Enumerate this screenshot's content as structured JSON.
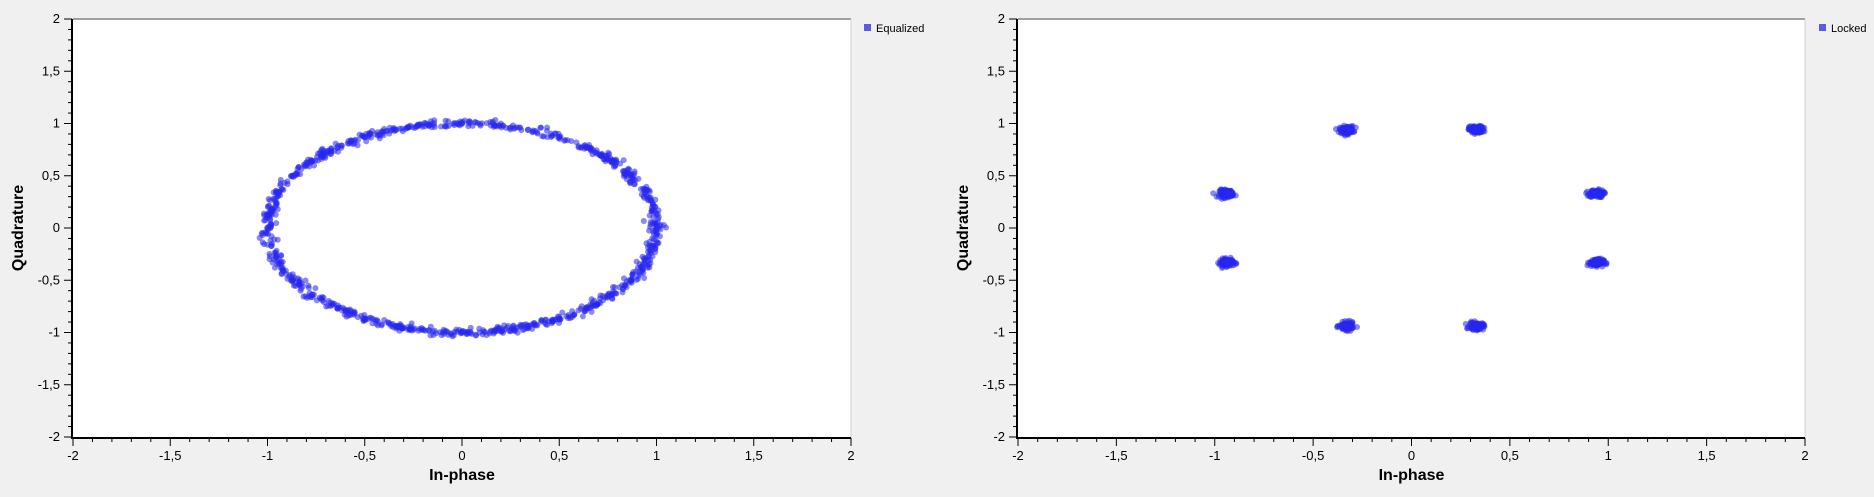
{
  "chart_data": [
    {
      "type": "scatter",
      "xlabel": "In-phase",
      "ylabel": "Quadrature",
      "xlim": [
        -2,
        2
      ],
      "ylim": [
        -2,
        2
      ],
      "xticks": [
        "-2",
        "-1,5",
        "-1",
        "-0,5",
        "0",
        "0,5",
        "1",
        "1,5",
        "2"
      ],
      "yticks": [
        "2",
        "1,5",
        "1",
        "0,5",
        "0",
        "-0,5",
        "-1",
        "-1,5",
        "-2"
      ],
      "legend_position": "top-right",
      "grid": false,
      "series": [
        {
          "name": "Equalized",
          "color": "#2727ee",
          "points": [
            [
              1.0,
              0.0
            ],
            [
              0.98,
              0.17
            ],
            [
              0.94,
              0.34
            ],
            [
              0.87,
              0.5
            ],
            [
              0.77,
              0.64
            ],
            [
              0.64,
              0.77
            ],
            [
              0.5,
              0.87
            ],
            [
              0.34,
              0.94
            ],
            [
              0.17,
              0.98
            ],
            [
              0.0,
              1.0
            ],
            [
              -0.17,
              0.98
            ],
            [
              -0.34,
              0.94
            ],
            [
              -0.5,
              0.87
            ],
            [
              -0.64,
              0.77
            ],
            [
              -0.77,
              0.64
            ],
            [
              -0.87,
              0.5
            ],
            [
              -0.94,
              0.34
            ],
            [
              -0.98,
              0.17
            ],
            [
              -1.0,
              0.0
            ],
            [
              -0.98,
              -0.17
            ],
            [
              -0.94,
              -0.34
            ],
            [
              -0.87,
              -0.5
            ],
            [
              -0.77,
              -0.64
            ],
            [
              -0.64,
              -0.77
            ],
            [
              -0.5,
              -0.87
            ],
            [
              -0.34,
              -0.94
            ],
            [
              -0.17,
              -0.98
            ],
            [
              0.0,
              -1.0
            ],
            [
              0.17,
              -0.98
            ],
            [
              0.34,
              -0.94
            ],
            [
              0.5,
              -0.87
            ],
            [
              0.64,
              -0.77
            ],
            [
              0.77,
              -0.64
            ],
            [
              0.87,
              -0.5
            ],
            [
              0.94,
              -0.34
            ],
            [
              0.98,
              -0.17
            ]
          ]
        }
      ]
    },
    {
      "type": "scatter",
      "xlabel": "In-phase",
      "ylabel": "Quadrature",
      "xlim": [
        -2,
        2
      ],
      "ylim": [
        -2,
        2
      ],
      "xticks": [
        "-2",
        "-1,5",
        "-1",
        "-0,5",
        "0",
        "0,5",
        "1",
        "1,5",
        "2"
      ],
      "yticks": [
        "2",
        "1,5",
        "1",
        "0,5",
        "0",
        "-0,5",
        "-1",
        "-1,5",
        "-2"
      ],
      "legend_position": "top-right",
      "grid": false,
      "series": [
        {
          "name": "Locked",
          "color": "#2727ee",
          "points": [
            [
              0.94,
              0.33
            ],
            [
              0.33,
              0.94
            ],
            [
              -0.33,
              0.94
            ],
            [
              -0.94,
              0.33
            ],
            [
              -0.94,
              -0.33
            ],
            [
              -0.33,
              -0.94
            ],
            [
              0.33,
              -0.94
            ],
            [
              0.94,
              -0.33
            ]
          ]
        }
      ]
    }
  ]
}
